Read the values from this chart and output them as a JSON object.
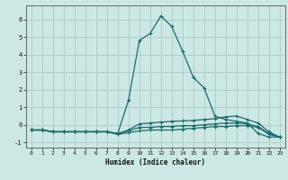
{
  "x": [
    0,
    1,
    2,
    3,
    4,
    5,
    6,
    7,
    8,
    9,
    10,
    11,
    12,
    13,
    14,
    15,
    16,
    17,
    18,
    19,
    20,
    21,
    22,
    23
  ],
  "line1": [
    -0.3,
    -0.3,
    -0.4,
    -0.4,
    -0.4,
    -0.4,
    -0.4,
    -0.4,
    -0.5,
    1.4,
    4.8,
    5.2,
    6.2,
    5.6,
    4.2,
    2.7,
    2.1,
    0.5,
    0.3,
    0.2,
    0.1,
    -0.5,
    -0.7,
    -0.7
  ],
  "line2": [
    -0.3,
    -0.3,
    -0.4,
    -0.4,
    -0.4,
    -0.4,
    -0.4,
    -0.4,
    -0.5,
    -0.3,
    0.05,
    0.1,
    0.15,
    0.2,
    0.22,
    0.25,
    0.3,
    0.35,
    0.45,
    0.5,
    0.3,
    0.1,
    -0.4,
    -0.7
  ],
  "line3": [
    -0.3,
    -0.3,
    -0.4,
    -0.4,
    -0.4,
    -0.4,
    -0.4,
    -0.4,
    -0.5,
    -0.35,
    -0.15,
    -0.15,
    -0.1,
    -0.1,
    -0.05,
    -0.05,
    0.0,
    0.05,
    0.1,
    0.1,
    0.05,
    -0.1,
    -0.5,
    -0.7
  ],
  "line4": [
    -0.3,
    -0.3,
    -0.4,
    -0.4,
    -0.4,
    -0.4,
    -0.4,
    -0.4,
    -0.55,
    -0.45,
    -0.35,
    -0.3,
    -0.3,
    -0.3,
    -0.25,
    -0.2,
    -0.15,
    -0.1,
    -0.1,
    -0.05,
    -0.05,
    -0.15,
    -0.55,
    -0.7
  ],
  "color": "#1a6b6b",
  "bg_color": "#cce8e4",
  "grid_color": "#aaccca",
  "xlabel": "Humidex (Indice chaleur)",
  "xlim": [
    -0.5,
    23.5
  ],
  "ylim": [
    -1.3,
    6.8
  ],
  "yticks": [
    -1,
    0,
    1,
    2,
    3,
    4,
    5,
    6
  ],
  "xticks": [
    0,
    1,
    2,
    3,
    4,
    5,
    6,
    7,
    8,
    9,
    10,
    11,
    12,
    13,
    14,
    15,
    16,
    17,
    18,
    19,
    20,
    21,
    22,
    23
  ]
}
